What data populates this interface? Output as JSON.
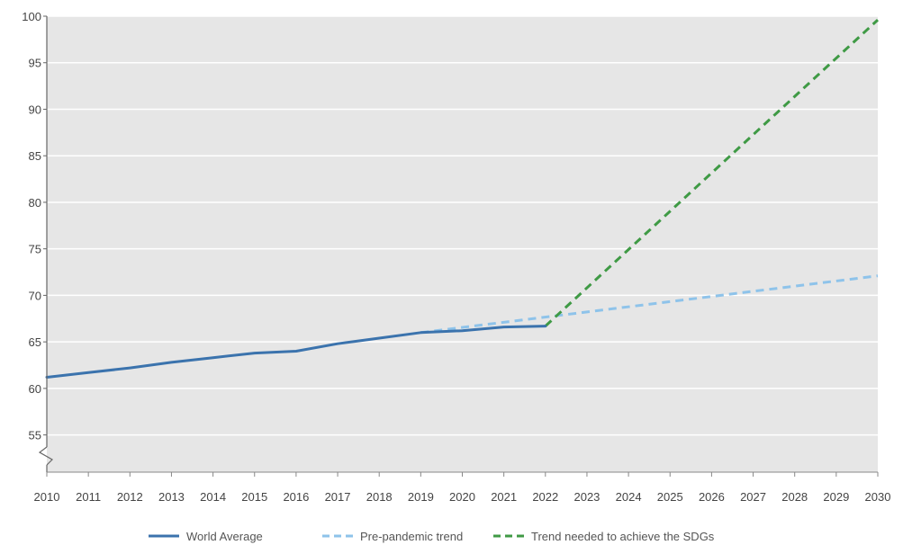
{
  "chart_data": {
    "type": "line",
    "x": [
      2010,
      2011,
      2012,
      2013,
      2014,
      2015,
      2016,
      2017,
      2018,
      2019,
      2020,
      2021,
      2022,
      2023,
      2024,
      2025,
      2026,
      2027,
      2028,
      2029,
      2030
    ],
    "xticks": [
      "2010",
      "2011",
      "2012",
      "2013",
      "2014",
      "2015",
      "2016",
      "2017",
      "2018",
      "2019",
      "2020",
      "2021",
      "2022",
      "2023",
      "2024",
      "2025",
      "2026",
      "2027",
      "2028",
      "2029",
      "2030"
    ],
    "yticks": [
      "55",
      "60",
      "65",
      "70",
      "75",
      "80",
      "85",
      "90",
      "95",
      "100"
    ],
    "ylim": [
      51,
      100
    ],
    "xlim": [
      2010,
      2030
    ],
    "axis_break": "y-axis below 55",
    "grid": "horizontal",
    "legend_position": "bottom-center",
    "series": [
      {
        "name": "World Average",
        "style": "solid",
        "color": "#3b73ad",
        "x": [
          2010,
          2011,
          2012,
          2013,
          2014,
          2015,
          2016,
          2017,
          2018,
          2019,
          2020,
          2021,
          2022
        ],
        "y": [
          61.2,
          61.7,
          62.2,
          62.8,
          63.3,
          63.8,
          64.0,
          64.8,
          65.4,
          66.0,
          66.2,
          66.6,
          66.7
        ]
      },
      {
        "name": "Pre-pandemic trend",
        "style": "dashed",
        "color": "#8ec3ea",
        "x": [
          2019,
          2030
        ],
        "y": [
          66.0,
          72.1
        ]
      },
      {
        "name": "Trend needed to achieve the SDGs",
        "style": "dashed",
        "color": "#3f9a45",
        "x": [
          2022,
          2030
        ],
        "y": [
          66.7,
          99.6
        ]
      }
    ]
  }
}
